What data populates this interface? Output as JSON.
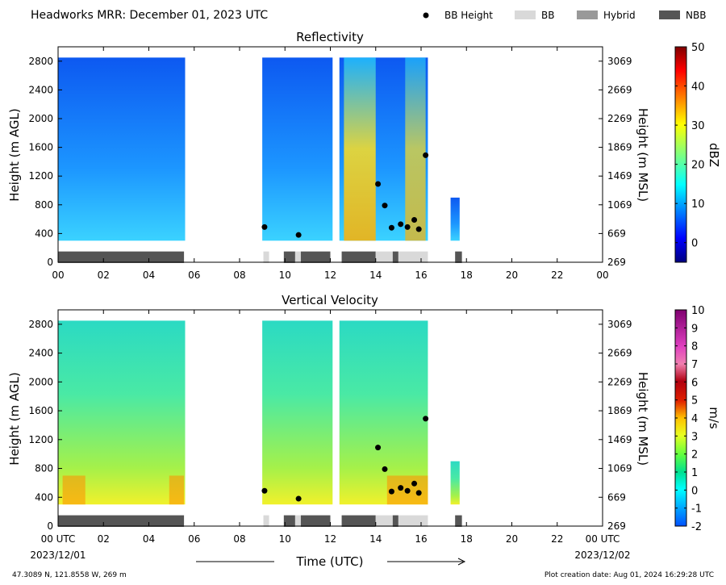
{
  "header": {
    "title": "Headworks MRR:  December 01, 2023 UTC",
    "legend": [
      {
        "label": "BB Height",
        "kind": "dot",
        "color": "#000000"
      },
      {
        "label": "BB",
        "kind": "box",
        "color": "#d9d9d9"
      },
      {
        "label": "Hybrid",
        "kind": "box",
        "color": "#999999"
      },
      {
        "label": "NBB",
        "kind": "box",
        "color": "#555555"
      }
    ]
  },
  "footer": {
    "location": "47.3089 N, 121.8558 W, 269 m",
    "creation": "Plot creation date: Aug 01, 2024 16:29:28 UTC",
    "xlabel": "Time (UTC)",
    "start_date": "2023/12/01",
    "end_date": "2023/12/02"
  },
  "chart_data": [
    {
      "type": "heatmap",
      "title": "Reflectivity",
      "ylabel": "Height (m AGL)",
      "ylabel_right": "Height (m MSL)",
      "colorbar_label": "dBZ",
      "colorbar_range": [
        -5,
        50
      ],
      "colorbar_ticks": [
        "0",
        "10",
        "20",
        "30",
        "40",
        "50"
      ],
      "colormap": "jet",
      "x_ticks": [
        "00",
        "02",
        "04",
        "06",
        "08",
        "10",
        "12",
        "14",
        "16",
        "18",
        "20",
        "22",
        "00"
      ],
      "xlim": [
        0,
        24
      ],
      "ylim": [
        0,
        3000
      ],
      "y_ticks_left": [
        "0",
        "400",
        "800",
        "1200",
        "1600",
        "2000",
        "2400",
        "2800"
      ],
      "y_ticks_right": [
        "269",
        "669",
        "1069",
        "1469",
        "1869",
        "2269",
        "2669",
        "3069"
      ]
    },
    {
      "type": "heatmap",
      "title": "Vertical Velocity",
      "ylabel": "Height (m AGL)",
      "ylabel_right": "Height (m MSL)",
      "colorbar_label": "m/s",
      "colorbar_range": [
        -2,
        10
      ],
      "colorbar_ticks": [
        "-2",
        "-1",
        "0",
        "1",
        "2",
        "3",
        "4",
        "5",
        "6",
        "7",
        "8",
        "9",
        "10"
      ],
      "x_ticks": [
        "00 UTC",
        "02",
        "04",
        "06",
        "08",
        "10",
        "12",
        "14",
        "16",
        "18",
        "20",
        "22",
        "00 UTC"
      ],
      "xlim": [
        0,
        24
      ],
      "ylim": [
        0,
        3000
      ],
      "y_ticks_left": [
        "0",
        "400",
        "800",
        "1200",
        "1600",
        "2000",
        "2400",
        "2800"
      ],
      "y_ticks_right": [
        "269",
        "669",
        "1069",
        "1469",
        "1869",
        "2269",
        "2669",
        "3069"
      ]
    }
  ],
  "bb_height": {
    "times": [
      9.1,
      10.6,
      14.1,
      14.4,
      14.7,
      15.1,
      15.4,
      15.7,
      15.9,
      16.2
    ],
    "heights": [
      490,
      380,
      1090,
      790,
      480,
      530,
      490,
      590,
      460,
      1490
    ]
  },
  "bb_type": [
    {
      "type": "NBB",
      "start": 0.0,
      "end": 5.55
    },
    {
      "type": "BB",
      "start": 9.05,
      "end": 9.3
    },
    {
      "type": "NBB",
      "start": 9.95,
      "end": 10.45
    },
    {
      "type": "BB",
      "start": 10.45,
      "end": 10.7
    },
    {
      "type": "NBB",
      "start": 10.7,
      "end": 12.0
    },
    {
      "type": "NBB",
      "start": 12.5,
      "end": 14.0
    },
    {
      "type": "BB",
      "start": 14.0,
      "end": 14.75
    },
    {
      "type": "NBB",
      "start": 14.75,
      "end": 15.0
    },
    {
      "type": "BB",
      "start": 15.0,
      "end": 16.3
    },
    {
      "type": "NBB",
      "start": 17.5,
      "end": 17.8
    }
  ],
  "echo_segments": [
    {
      "start": 0.0,
      "end": 5.6,
      "top": 2850
    },
    {
      "start": 9.0,
      "end": 12.1,
      "top": 2850
    },
    {
      "start": 12.4,
      "end": 16.3,
      "top": 2850
    },
    {
      "start": 17.3,
      "end": 17.7,
      "top": 900
    }
  ]
}
